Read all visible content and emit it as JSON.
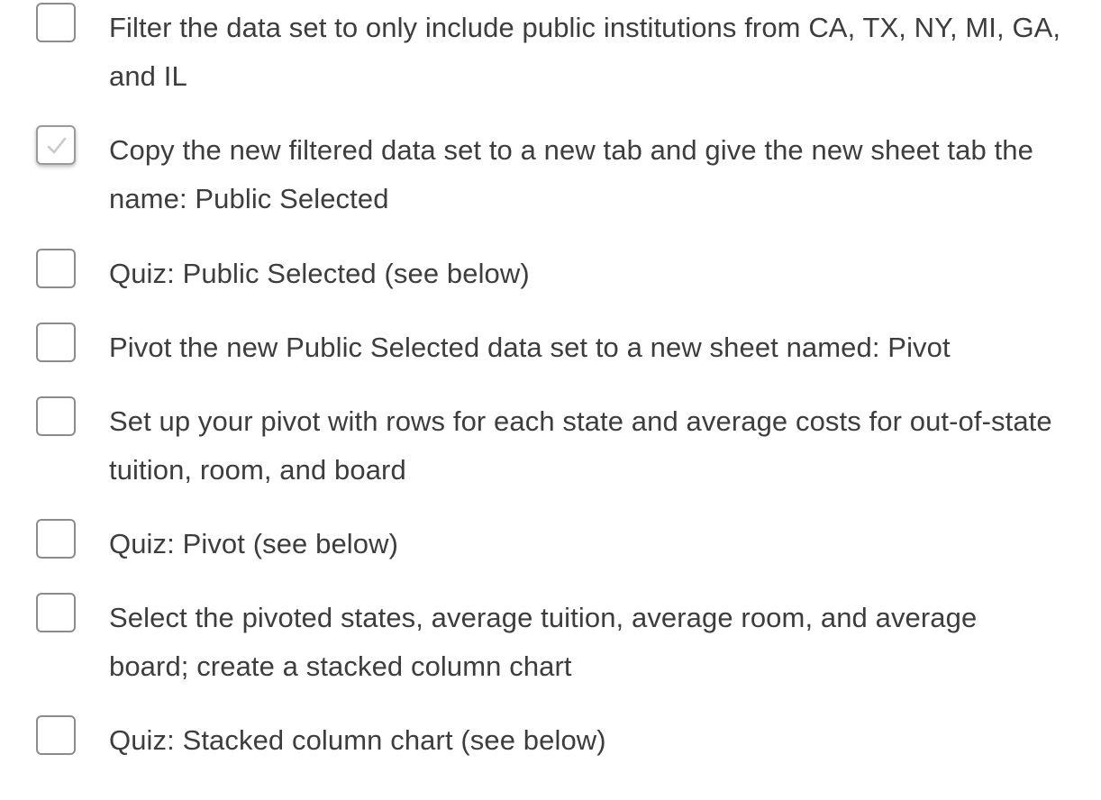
{
  "checklist": {
    "items": [
      {
        "label": "Filter the data set to only include public institutions from CA, TX, NY, MI, GA, and IL",
        "checked": false
      },
      {
        "label": "Copy the new filtered data set to a new tab and give the new sheet tab the name: Public Selected",
        "checked": true
      },
      {
        "label": "Quiz: Public Selected (see below)",
        "checked": false
      },
      {
        "label": "Pivot the new Public Selected data set to a new sheet named: Pivot",
        "checked": false
      },
      {
        "label": "Set up your pivot with rows for each state and average costs for out-of-state tuition, room, and board",
        "checked": false
      },
      {
        "label": "Quiz: Pivot (see below)",
        "checked": false
      },
      {
        "label": "Select the pivoted states, average tuition, average room, and average board; create a stacked column chart",
        "checked": false
      },
      {
        "label": "Quiz: Stacked column chart (see below)",
        "checked": false
      }
    ]
  },
  "icons": {
    "checkmark": "check-icon"
  },
  "colors": {
    "text": "#3d3d3d",
    "checkbox_border": "#8c8c8c",
    "checkmark": "#c8c8c8",
    "background": "#ffffff"
  }
}
